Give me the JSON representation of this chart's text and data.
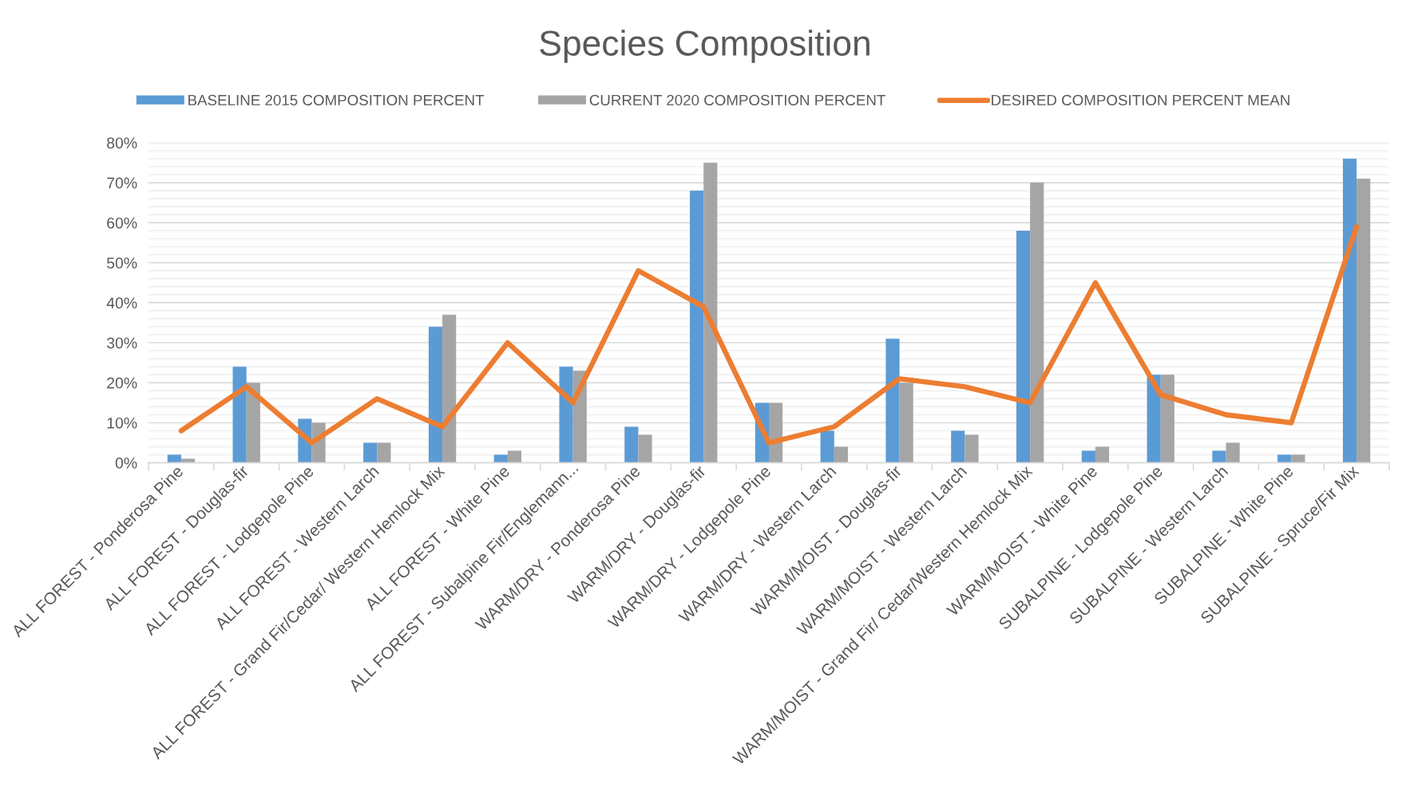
{
  "chart_data": {
    "type": "bar",
    "title": "Species Composition",
    "categories": [
      "ALL FOREST - Ponderosa Pine",
      "ALL FOREST - Douglas-fir",
      "ALL FOREST - Lodgepole Pine",
      "ALL FOREST - Western Larch",
      "ALL FOREST - Grand Fir/Cedar/ Western Hemlock Mix",
      "ALL FOREST - White Pine",
      "ALL FOREST - Subalpine Fir/Englemann...",
      "WARM/DRY - Ponderosa Pine",
      "WARM/DRY - Douglas-fir",
      "WARM/DRY - Lodgepole Pine",
      "WARM/DRY - Western Larch",
      "WARM/MOIST - Douglas-fir",
      "WARM/MOIST - Western Larch",
      "WARM/MOIST - Grand Fir/ Cedar/Western Hemlock Mix",
      "WARM/MOIST - White Pine",
      "SUBALPINE - Lodgepole Pine",
      "SUBALPINE - Western Larch",
      "SUBALPINE - White Pine",
      "SUBALPINE - Spruce/Fir Mix"
    ],
    "series": [
      {
        "name": "BASELINE 2015 COMPOSITION PERCENT",
        "color": "#5b9bd5",
        "values": [
          2,
          24,
          11,
          5,
          34,
          2,
          24,
          9,
          68,
          15,
          8,
          31,
          8,
          58,
          3,
          22,
          3,
          2,
          76
        ]
      },
      {
        "name": "CURRENT 2020 COMPOSITION PERCENT",
        "color": "#a5a5a5",
        "values": [
          1,
          20,
          10,
          5,
          37,
          3,
          23,
          7,
          75,
          15,
          4,
          20,
          7,
          70,
          4,
          22,
          5,
          2,
          71
        ]
      },
      {
        "name": "DESIRED COMPOSITION PERCENT MEAN",
        "type": "line",
        "color": "#ed7d31",
        "values": [
          8,
          19,
          5,
          16,
          9,
          30,
          15,
          48,
          39,
          5,
          9,
          21,
          19,
          15,
          45,
          17,
          12,
          10,
          59
        ]
      }
    ],
    "ylim": [
      0,
      80
    ],
    "yticks": [
      {
        "value": 0,
        "label": "0%"
      },
      {
        "value": 2,
        "label": null
      },
      {
        "value": 4,
        "label": null
      },
      {
        "value": 6,
        "label": null
      },
      {
        "value": 8,
        "label": null
      },
      {
        "value": 10,
        "label": "10%"
      },
      {
        "value": 12,
        "label": null
      },
      {
        "value": 14,
        "label": null
      },
      {
        "value": 16,
        "label": null
      },
      {
        "value": 18,
        "label": null
      },
      {
        "value": 20,
        "label": "20%"
      },
      {
        "value": 22,
        "label": null
      },
      {
        "value": 24,
        "label": null
      },
      {
        "value": 26,
        "label": null
      },
      {
        "value": 28,
        "label": null
      },
      {
        "value": 30,
        "label": "30%"
      },
      {
        "value": 32,
        "label": null
      },
      {
        "value": 34,
        "label": null
      },
      {
        "value": 36,
        "label": null
      },
      {
        "value": 38,
        "label": null
      },
      {
        "value": 40,
        "label": "40%"
      },
      {
        "value": 42,
        "label": null
      },
      {
        "value": 44,
        "label": null
      },
      {
        "value": 46,
        "label": null
      },
      {
        "value": 48,
        "label": null
      },
      {
        "value": 50,
        "label": "50%"
      },
      {
        "value": 52,
        "label": null
      },
      {
        "value": 54,
        "label": null
      },
      {
        "value": 56,
        "label": null
      },
      {
        "value": 58,
        "label": null
      },
      {
        "value": 60,
        "label": "60%"
      },
      {
        "value": 62,
        "label": null
      },
      {
        "value": 64,
        "label": null
      },
      {
        "value": 66,
        "label": null
      },
      {
        "value": 68,
        "label": null
      },
      {
        "value": 70,
        "label": "70%"
      },
      {
        "value": 72,
        "label": null
      },
      {
        "value": 74,
        "label": null
      },
      {
        "value": 76,
        "label": null
      },
      {
        "value": 78,
        "label": null
      },
      {
        "value": 80,
        "label": "80%"
      }
    ],
    "grid": "y",
    "legend": "top",
    "line_style": "solid"
  }
}
